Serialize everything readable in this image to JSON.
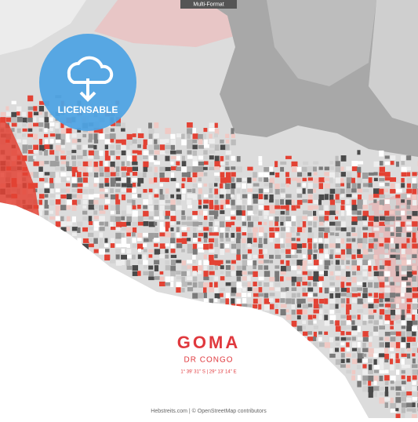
{
  "header": {
    "format_tag": "Multi-Format"
  },
  "badge": {
    "label": "LICENSABLE"
  },
  "title": {
    "city": "GOMA",
    "country": "DR CONGO",
    "coordinates": "1° 39' 31'' S | 29° 13' 14'' E"
  },
  "footer": {
    "credit": "Hebstreits.com | © OpenStreetMap contributors"
  }
}
